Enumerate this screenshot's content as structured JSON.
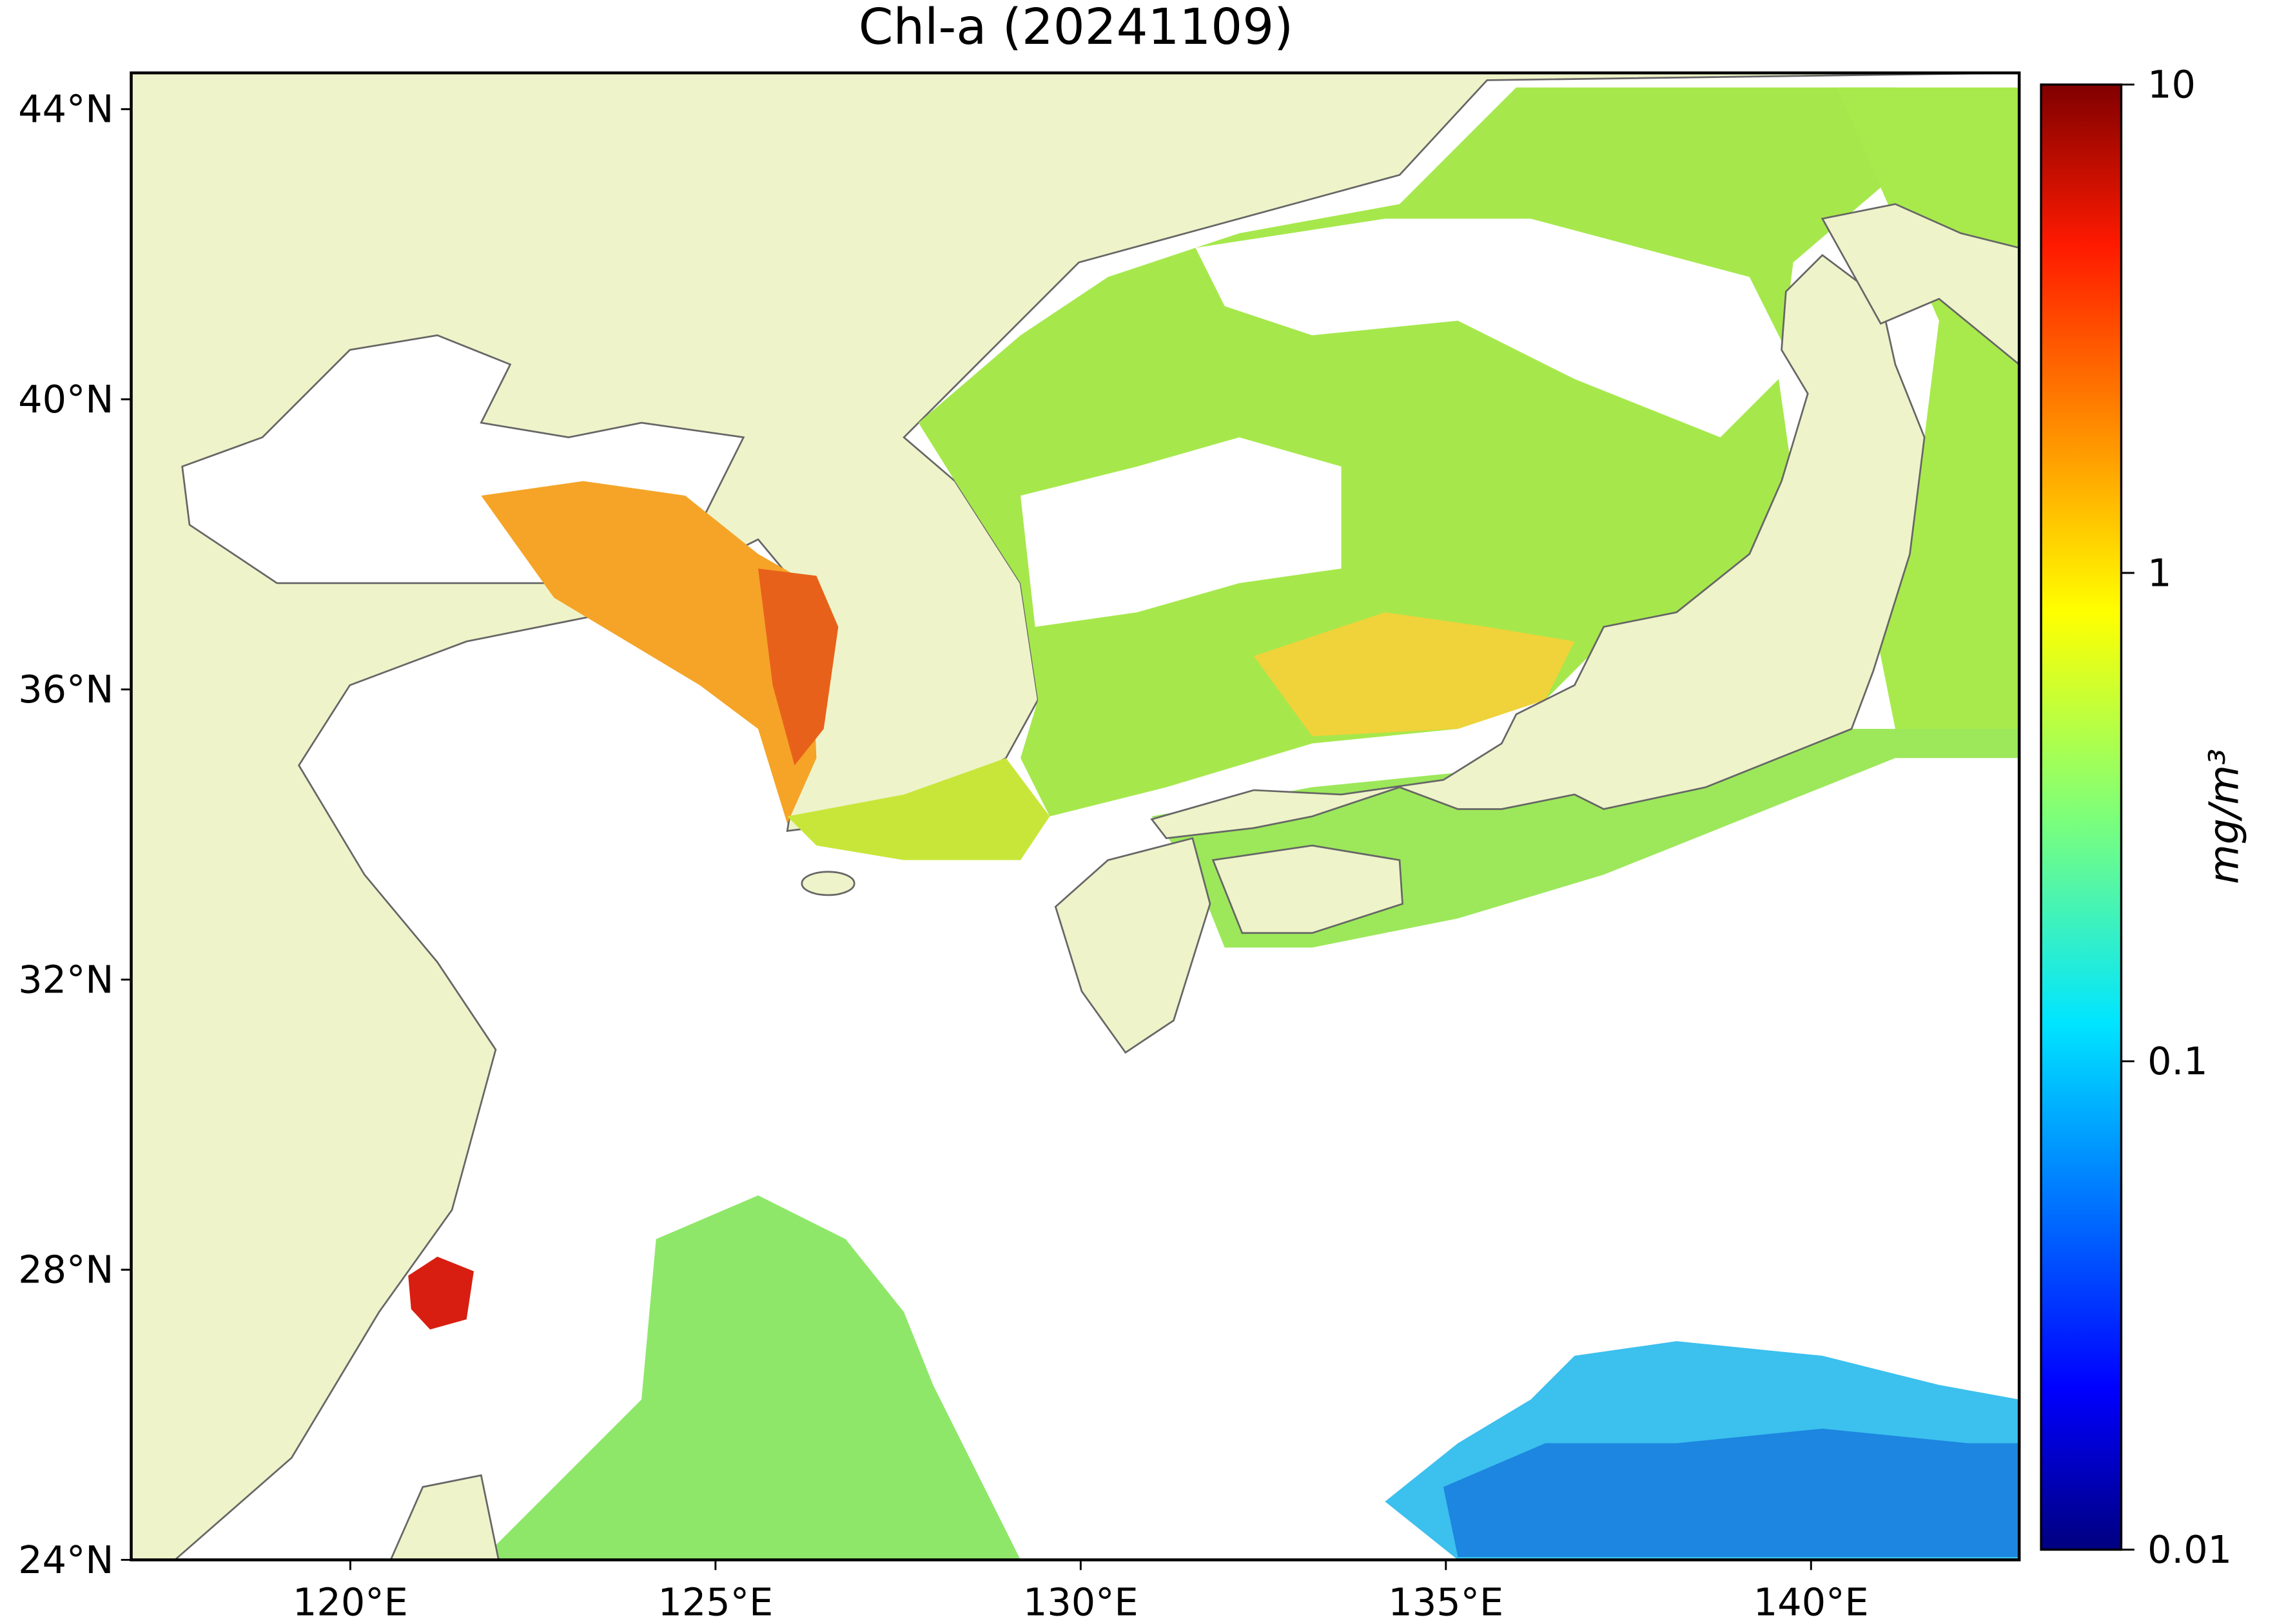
{
  "map": {
    "title": "Chl-a (20241109)",
    "xlim": [
      117,
      142.85
    ],
    "ylim": [
      24,
      44.5
    ],
    "lon_ticks": [
      {
        "value": 120,
        "label": "120°E"
      },
      {
        "value": 125,
        "label": "125°E"
      },
      {
        "value": 130,
        "label": "130°E"
      },
      {
        "value": 135,
        "label": "135°E"
      },
      {
        "value": 140,
        "label": "140°E"
      }
    ],
    "lat_ticks": [
      {
        "value": 24,
        "label": "24°N"
      },
      {
        "value": 28,
        "label": "28°N"
      },
      {
        "value": 32,
        "label": "32°N"
      },
      {
        "value": 36,
        "label": "36°N"
      },
      {
        "value": 40,
        "label": "40°N"
      },
      {
        "value": 44,
        "label": "44°N"
      }
    ],
    "colorbar": {
      "label": "mg/m³",
      "log": true,
      "lim": [
        0.01,
        10
      ],
      "ticks": [
        0.01,
        0.1,
        1,
        10
      ]
    }
  }
}
